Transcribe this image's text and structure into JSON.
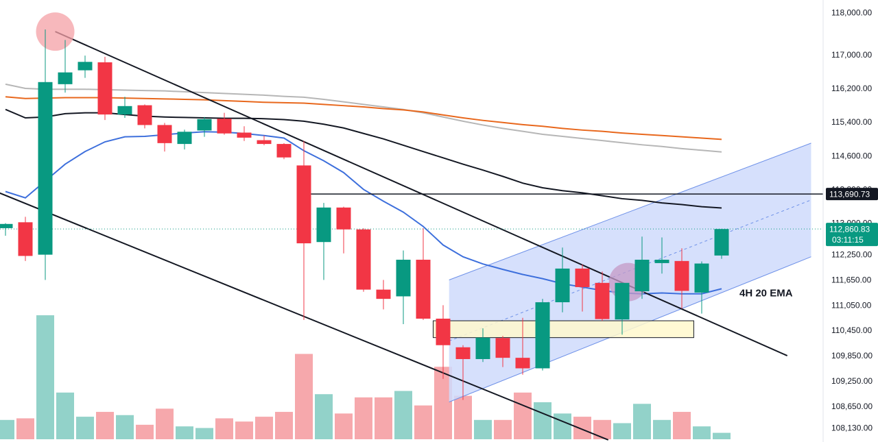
{
  "chart_data": {
    "type": "candlestick",
    "title": "",
    "xlabel": "",
    "ylabel": "",
    "ylim": [
      107800,
      118300
    ],
    "y_ticks": [
      "118,000.00",
      "117,000.00",
      "116,200.00",
      "115,400.00",
      "114,600.00",
      "113,800.00",
      "113,000.00",
      "112,250.00",
      "111,650.00",
      "111,050.00",
      "110,450.00",
      "109,850.00",
      "109,250.00",
      "108,650.00",
      "108,130.00"
    ],
    "y_tick_values": [
      118000,
      117000,
      116200,
      115400,
      114600,
      113800,
      113000,
      112250,
      111650,
      111050,
      110450,
      109850,
      109250,
      108650,
      108130
    ],
    "candles": [
      {
        "o": 112880,
        "h": 113000,
        "l": 112700,
        "c": 112980
      },
      {
        "o": 113020,
        "h": 113150,
        "l": 112100,
        "c": 112220
      },
      {
        "o": 112250,
        "h": 117600,
        "l": 111650,
        "c": 116350
      },
      {
        "o": 116300,
        "h": 117350,
        "l": 116100,
        "c": 116580
      },
      {
        "o": 116630,
        "h": 116980,
        "l": 116450,
        "c": 116830
      },
      {
        "o": 116820,
        "h": 116950,
        "l": 115450,
        "c": 115580
      },
      {
        "o": 115580,
        "h": 116000,
        "l": 115500,
        "c": 115780
      },
      {
        "o": 115800,
        "h": 115820,
        "l": 115250,
        "c": 115330
      },
      {
        "o": 115330,
        "h": 115380,
        "l": 114700,
        "c": 114900
      },
      {
        "o": 114880,
        "h": 115220,
        "l": 114750,
        "c": 115170
      },
      {
        "o": 115200,
        "h": 115520,
        "l": 115050,
        "c": 115470
      },
      {
        "o": 115480,
        "h": 115620,
        "l": 115100,
        "c": 115130
      },
      {
        "o": 115150,
        "h": 115300,
        "l": 114950,
        "c": 115030
      },
      {
        "o": 114970,
        "h": 115080,
        "l": 114850,
        "c": 114880
      },
      {
        "o": 114880,
        "h": 114900,
        "l": 114520,
        "c": 114560
      },
      {
        "o": 114370,
        "h": 114950,
        "l": 110700,
        "c": 112520
      },
      {
        "o": 112550,
        "h": 113480,
        "l": 111650,
        "c": 113370
      },
      {
        "o": 113370,
        "h": 113390,
        "l": 112280,
        "c": 112850
      },
      {
        "o": 112850,
        "h": 112880,
        "l": 111370,
        "c": 111420
      },
      {
        "o": 111420,
        "h": 111650,
        "l": 110950,
        "c": 111200
      },
      {
        "o": 111260,
        "h": 112350,
        "l": 110600,
        "c": 112130
      },
      {
        "o": 112130,
        "h": 112880,
        "l": 110700,
        "c": 110730
      },
      {
        "o": 110730,
        "h": 111050,
        "l": 109300,
        "c": 110100
      },
      {
        "o": 110050,
        "h": 110100,
        "l": 108800,
        "c": 109770
      },
      {
        "o": 109770,
        "h": 110500,
        "l": 109700,
        "c": 110280
      },
      {
        "o": 110270,
        "h": 110320,
        "l": 109580,
        "c": 109800
      },
      {
        "o": 109800,
        "h": 110750,
        "l": 109400,
        "c": 109550
      },
      {
        "o": 109550,
        "h": 111200,
        "l": 109500,
        "c": 111120
      },
      {
        "o": 111120,
        "h": 112420,
        "l": 110880,
        "c": 111920
      },
      {
        "o": 111920,
        "h": 112020,
        "l": 110900,
        "c": 111480
      },
      {
        "o": 111580,
        "h": 111850,
        "l": 110680,
        "c": 110720
      },
      {
        "o": 110710,
        "h": 111500,
        "l": 110350,
        "c": 111580
      },
      {
        "o": 111380,
        "h": 112680,
        "l": 111200,
        "c": 112130
      },
      {
        "o": 112050,
        "h": 112660,
        "l": 111800,
        "c": 112130
      },
      {
        "o": 112100,
        "h": 112400,
        "l": 110970,
        "c": 111390
      },
      {
        "o": 111350,
        "h": 112090,
        "l": 110850,
        "c": 112040
      },
      {
        "o": 112230,
        "h": 112860,
        "l": 112150,
        "c": 112860
      }
    ],
    "volumes": [
      0.12,
      0.13,
      0.77,
      0.29,
      0.14,
      0.17,
      0.15,
      0.09,
      0.19,
      0.08,
      0.07,
      0.13,
      0.11,
      0.14,
      0.17,
      0.53,
      0.28,
      0.16,
      0.26,
      0.26,
      0.3,
      0.21,
      0.45,
      0.27,
      0.12,
      0.12,
      0.29,
      0.23,
      0.16,
      0.14,
      0.12,
      0.1,
      0.22,
      0.12,
      0.17,
      0.08,
      0.04
    ],
    "ema20": [
      [
        0,
        113750
      ],
      [
        1,
        113600
      ],
      [
        2,
        114000
      ],
      [
        3,
        114400
      ],
      [
        4,
        114700
      ],
      [
        5,
        114930
      ],
      [
        6,
        115050
      ],
      [
        7,
        115060
      ],
      [
        8,
        115100
      ],
      [
        9,
        115140
      ],
      [
        10,
        115170
      ],
      [
        11,
        115160
      ],
      [
        12,
        115130
      ],
      [
        13,
        115080
      ],
      [
        14,
        115020
      ],
      [
        15,
        114720
      ],
      [
        16,
        114480
      ],
      [
        17,
        114200
      ],
      [
        18,
        113800
      ],
      [
        19,
        113520
      ],
      [
        20,
        113260
      ],
      [
        21,
        112920
      ],
      [
        22,
        112480
      ],
      [
        23,
        112200
      ],
      [
        24,
        112030
      ],
      [
        25,
        111900
      ],
      [
        26,
        111780
      ],
      [
        27,
        111680
      ],
      [
        28,
        111560
      ],
      [
        29,
        111480
      ],
      [
        30,
        111400
      ],
      [
        31,
        111340
      ],
      [
        32,
        111320
      ],
      [
        33,
        111340
      ],
      [
        34,
        111320
      ],
      [
        35,
        111320
      ],
      [
        36,
        111440
      ]
    ],
    "ma_black": [
      [
        0,
        115700
      ],
      [
        1,
        115500
      ],
      [
        2,
        115520
      ],
      [
        3,
        115600
      ],
      [
        4,
        115620
      ],
      [
        5,
        115620
      ],
      [
        6,
        115580
      ],
      [
        7,
        115540
      ],
      [
        8,
        115520
      ],
      [
        9,
        115510
      ],
      [
        10,
        115500
      ],
      [
        11,
        115490
      ],
      [
        12,
        115490
      ],
      [
        13,
        115480
      ],
      [
        14,
        115460
      ],
      [
        15,
        115420
      ],
      [
        16,
        115350
      ],
      [
        17,
        115260
      ],
      [
        18,
        115130
      ],
      [
        19,
        115000
      ],
      [
        20,
        114850
      ],
      [
        21,
        114700
      ],
      [
        22,
        114550
      ],
      [
        23,
        114400
      ],
      [
        24,
        114260
      ],
      [
        25,
        114110
      ],
      [
        26,
        113950
      ],
      [
        27,
        113840
      ],
      [
        28,
        113770
      ],
      [
        29,
        113720
      ],
      [
        30,
        113650
      ],
      [
        31,
        113580
      ],
      [
        32,
        113540
      ],
      [
        33,
        113480
      ],
      [
        34,
        113440
      ],
      [
        35,
        113390
      ],
      [
        36,
        113360
      ]
    ],
    "ma_orange": [
      [
        0,
        116000
      ],
      [
        1,
        115960
      ],
      [
        2,
        115970
      ],
      [
        3,
        115980
      ],
      [
        4,
        115980
      ],
      [
        5,
        115980
      ],
      [
        6,
        115970
      ],
      [
        7,
        115960
      ],
      [
        8,
        115950
      ],
      [
        9,
        115940
      ],
      [
        10,
        115930
      ],
      [
        11,
        115910
      ],
      [
        12,
        115890
      ],
      [
        13,
        115870
      ],
      [
        14,
        115860
      ],
      [
        15,
        115850
      ],
      [
        16,
        115820
      ],
      [
        17,
        115790
      ],
      [
        18,
        115760
      ],
      [
        19,
        115720
      ],
      [
        20,
        115690
      ],
      [
        21,
        115640
      ],
      [
        22,
        115570
      ],
      [
        23,
        115500
      ],
      [
        24,
        115440
      ],
      [
        25,
        115390
      ],
      [
        26,
        115340
      ],
      [
        27,
        115300
      ],
      [
        28,
        115250
      ],
      [
        29,
        115210
      ],
      [
        30,
        115180
      ],
      [
        31,
        115140
      ],
      [
        32,
        115110
      ],
      [
        33,
        115080
      ],
      [
        34,
        115050
      ],
      [
        35,
        115020
      ],
      [
        36,
        114990
      ]
    ],
    "ma_gray": [
      [
        0,
        116300
      ],
      [
        1,
        116200
      ],
      [
        2,
        116180
      ],
      [
        3,
        116180
      ],
      [
        4,
        116180
      ],
      [
        5,
        116170
      ],
      [
        6,
        116160
      ],
      [
        7,
        116150
      ],
      [
        8,
        116140
      ],
      [
        9,
        116120
      ],
      [
        10,
        116100
      ],
      [
        11,
        116080
      ],
      [
        12,
        116060
      ],
      [
        13,
        116040
      ],
      [
        14,
        116010
      ],
      [
        15,
        115990
      ],
      [
        16,
        115940
      ],
      [
        17,
        115880
      ],
      [
        18,
        115820
      ],
      [
        19,
        115760
      ],
      [
        20,
        115700
      ],
      [
        21,
        115620
      ],
      [
        22,
        115520
      ],
      [
        23,
        115420
      ],
      [
        24,
        115330
      ],
      [
        25,
        115250
      ],
      [
        26,
        115180
      ],
      [
        27,
        115110
      ],
      [
        28,
        115060
      ],
      [
        29,
        115010
      ],
      [
        30,
        114960
      ],
      [
        31,
        114910
      ],
      [
        32,
        114860
      ],
      [
        33,
        114820
      ],
      [
        34,
        114770
      ],
      [
        35,
        114730
      ],
      [
        36,
        114690
      ]
    ],
    "trendline_upper": [
      [
        2.5,
        117550
      ],
      [
        39.3,
        109850
      ]
    ],
    "trendline_lower": [
      [
        -1,
        113850
      ],
      [
        30.3,
        107850
      ]
    ],
    "horizontal_level": {
      "from": 15.3,
      "to": 41,
      "value": 113690.73
    },
    "channel": {
      "lower": [
        [
          22.3,
          108750
        ],
        [
          40.5,
          112200
        ]
      ],
      "upper": [
        [
          22.3,
          111650
        ],
        [
          40.5,
          114900
        ]
      ],
      "mid": [
        [
          22.3,
          110200
        ],
        [
          40.5,
          113550
        ]
      ]
    },
    "support_zone": {
      "x0": 21.5,
      "x1": 34.6,
      "ytop": 110680,
      "ybot": 110280
    },
    "highlight_circles": [
      {
        "x": 2.5,
        "y": 117550
      },
      {
        "x": 31.3,
        "y": 111600
      }
    ],
    "current_price": 112860.83,
    "annotation": "4H 20 EMA",
    "price_tags": [
      {
        "label": "113,690.73",
        "value": 113690.73,
        "bg": "#131722"
      },
      {
        "label": "112,860.83",
        "value": 112860.83,
        "bg": "#089981",
        "sub": "03:11:15"
      }
    ],
    "colors": {
      "up": "#089981",
      "down": "#f23645",
      "vol_up": "#92d2c9",
      "vol_down": "#f6a8ac",
      "ema20": "#3d6fdc",
      "ma_black": "#131722",
      "ma_orange": "#e8671c",
      "ma_gray": "#b6b6b6",
      "channel_fill": "#cfdbfb",
      "channel_line": "#6d90e8",
      "zone_fill": "#fff8cc",
      "circle_red": "#f4a0a6",
      "circle_purple": "#c49ac6"
    }
  }
}
